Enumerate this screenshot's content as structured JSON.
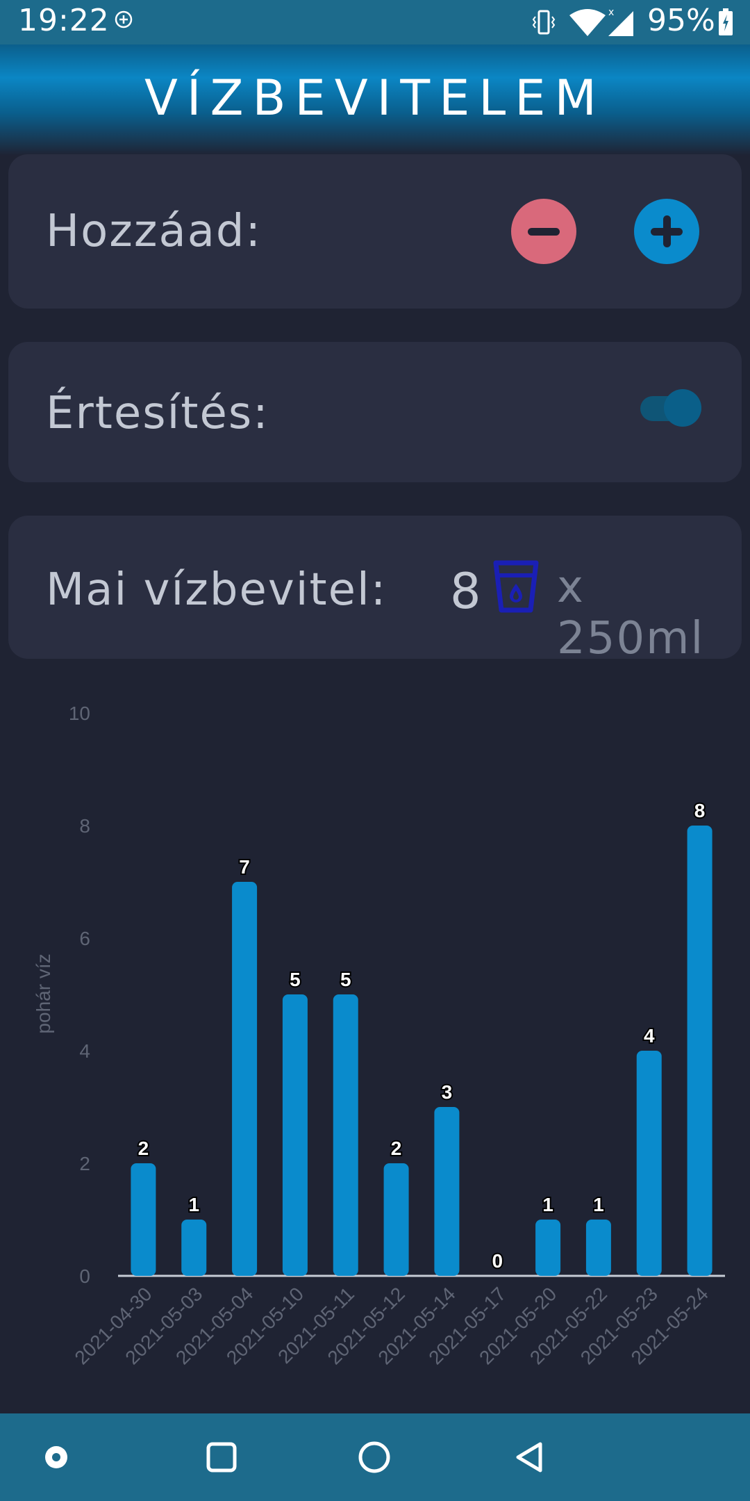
{
  "status_bar": {
    "time": "19:22",
    "battery_text": "95%",
    "icons": [
      "add-circle-icon",
      "vibrate-icon",
      "wifi-icon",
      "cellular-signal-icon",
      "battery-icon"
    ]
  },
  "header": {
    "title": "VÍZBEVITELEM"
  },
  "add_card": {
    "label": "Hozzáad:",
    "minus_icon": "minus-icon",
    "plus_icon": "plus-icon",
    "minus_color": "#d9697b",
    "plus_color": "#0a8bcc"
  },
  "notification_card": {
    "label": "Értesítés:",
    "toggle_on": true
  },
  "intake_card": {
    "label": "Mai vízbevitel:",
    "count": "8",
    "unit": "x 250ml",
    "icon": "water-glass-icon",
    "icon_color": "#1a1fb5"
  },
  "chart_data": {
    "type": "bar",
    "ylabel": "pohár víz",
    "ylim": [
      0,
      10
    ],
    "yticks": [
      0,
      2,
      4,
      6,
      8,
      10
    ],
    "categories": [
      "2021-04-30",
      "2021-05-03",
      "2021-05-04",
      "2021-05-10",
      "2021-05-11",
      "2021-05-12",
      "2021-05-14",
      "2021-05-17",
      "2021-05-20",
      "2021-05-22",
      "2021-05-23",
      "2021-05-24"
    ],
    "values": [
      2,
      1,
      7,
      5,
      5,
      2,
      3,
      0,
      1,
      1,
      4,
      8
    ],
    "bar_color": "#0a8bcc",
    "grid": false
  },
  "nav_bar": {
    "icons": [
      "assistant-dot-icon",
      "recents-square-icon",
      "home-circle-icon",
      "back-triangle-icon"
    ]
  }
}
